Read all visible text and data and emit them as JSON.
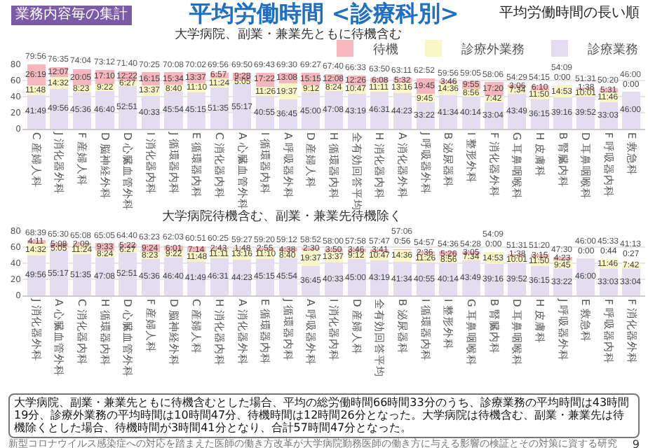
{
  "chart_data": [
    {
      "type": "bar",
      "title": "平均労働時間 <診療科別>",
      "subtitle": "大学病院、副業・兼業先ともに待機含む",
      "annotations": [
        "業務内容毎の集計",
        "平均労働時間の長い順"
      ],
      "categories": [
        "C 産婦人科",
        "J 消化器外科",
        "F 産婦人科",
        "D 脳神経外科",
        "D 心臓血管外科",
        "I 消化器内科",
        "J 循環器内科",
        "E 循環器内科",
        "C 消化器内科",
        "A 心臓血管外科",
        "I 循環器内科",
        "A 呼吸器外科",
        "D 産婦人科",
        "H 循環器内科",
        "全有効回答平均",
        "H 消化器内科",
        "A 消化器外科",
        "J 呼吸器外科",
        "B 泌尿器科",
        "I 整形外科",
        "F 消化器外科",
        "G 耳鼻咽喉科",
        "H 皮膚科",
        "B 腎臓内科",
        "D 耳鼻咽喉科",
        "F 呼吸器内科",
        "E 救急科"
      ],
      "series": [
        {
          "name": "診療業務",
          "color": "#e4ddef",
          "values": [
            41.82,
            49.93,
            45.6,
            46.67,
            52.85,
            40.55,
            45.9,
            45.25,
            51.58,
            55.28,
            40.92,
            36.75,
            45.0,
            47.13,
            43.32,
            46.52,
            44.38,
            33.37,
            41.57,
            40.23,
            33.07,
            43.82,
            36.25,
            39.27,
            39.87,
            33.05,
            46.0
          ],
          "value_labels": [
            "41:49",
            "49:56",
            "45:36",
            "46:40",
            "52:51",
            "40:33",
            "45:54",
            "45:15",
            "51:35",
            "55:17",
            "40:55",
            "36:45",
            "45:00",
            "47:08",
            "43:19",
            "46:31",
            "44:23",
            "33:22",
            "41:34",
            "40:14",
            "33:04",
            "43:49",
            "36:15",
            "39:16",
            "39:52",
            "33:03",
            "46:00"
          ]
        },
        {
          "name": "診療外業務",
          "color": "#fbf6c6",
          "values": [
            11.8,
            14.53,
            8.38,
            9.37,
            6.45,
            13.62,
            8.67,
            11.17,
            11.4,
            5.08,
            11.43,
            19.62,
            9.2,
            8.4,
            10.78,
            11.18,
            13.27,
            9.75,
            14.6,
            8.93,
            7.7,
            7.57,
            11.83,
            14.88,
            10.02,
            11.77,
            0
          ],
          "value_labels": [
            "11:48",
            "14:32",
            "8:23",
            "9:22",
            "6:27",
            "13:37",
            "8:40",
            "11:10",
            "11:24",
            "5:05",
            "11:26",
            "19:37",
            "9:12",
            "8:24",
            "10:47",
            "11:11",
            "13:16",
            "9:45",
            "14:36",
            "8:56",
            "7:42",
            "7:34",
            "11:50",
            "14:53",
            "10:01",
            "11:46",
            "0:00"
          ]
        },
        {
          "name": "待機",
          "color": "#f6b6bd",
          "values": [
            26.32,
            12.12,
            20.08,
            17.17,
            12.37,
            16.25,
            15.57,
            13.62,
            6.95,
            9.47,
            17.37,
            13.13,
            15.25,
            12.13,
            12.43,
            6.13,
            5.53,
            19.75,
            3.77,
            9.92,
            17.33,
            3.1,
            6.17,
            0,
            1.63,
            5.52,
            0
          ],
          "value_labels": [
            "26:19",
            "12:07",
            "20:05",
            "17:10",
            "12:22",
            "16:15",
            "15:34",
            "13:37",
            "6:57",
            "9:28",
            "17:22",
            "13:08",
            "15:15",
            "12:08",
            "12:26",
            "6:08",
            "5:32",
            "19:45",
            "3:46",
            "9:55",
            "17:20",
            "3:06",
            "6:10",
            "0:00",
            "1:38",
            "5:31",
            null
          ]
        }
      ],
      "totals": [
        "79:56",
        "76:35",
        "74:04",
        "73:12",
        "71:40",
        "70:25",
        "70:08",
        "70:02",
        "69:56",
        "69:50",
        "69:43",
        "69:30",
        "69:27",
        "67:40",
        "66:33",
        "63:50",
        "63:11",
        "62:52",
        "59:56",
        "59:05",
        "58:06",
        "54:29",
        "54:15",
        "54:09",
        "51:31",
        "50:20",
        "46:00"
      ],
      "stacked": true,
      "ylim": [
        0,
        80
      ],
      "yticks": [
        0,
        20,
        40,
        60,
        80
      ],
      "grid": "y",
      "legend": "top right"
    },
    {
      "type": "bar",
      "subtitle": "大学病院待機含む、副業・兼業先待機除く",
      "annotations": [
        "大学病院、副業・兼業先ともに待機含むとした場合、平均の総労働時間66時間33分のうち、診療業務の平均時間は43時間19分、診療外業務の平均時間は10時間47分、待機時間は12時間26分となった。大学病院は待機含む、副業・兼業先は待機除くとした場合、待機時間が3時間41分となり、合計57時間47分となった。",
        "新型コロナウイルス感染症への対応を踏まえた医師の働き方改革が大学病院勤務医師の働き方に与える影響の検証とその対策に資する研究",
        "9"
      ],
      "categories": [
        "J 消化器外科",
        "A 心臓血管外科",
        "C 消化器内科",
        "H 循環器内科",
        "D 心臓血管外科",
        "F 産婦人科",
        "D 脳神経外科",
        "C 産婦人科",
        "H 消化器内科",
        "A 消化器外科",
        "E 循環器内科",
        "J 循環器内科",
        "A 呼吸器外科",
        "I 消化器内科",
        "D 産婦人科",
        "全有効回答平均",
        "B 泌尿器科",
        "I 循環器内科",
        "I 整形外科",
        "G 耳鼻咽喉科",
        "B 腎臓内科",
        "D 耳鼻咽喉科",
        "H 皮膚科",
        "J 呼吸器外科",
        "E 救急科",
        "F 呼吸器内科",
        "F 消化器外科"
      ],
      "series": [
        {
          "color": "#e4ddef",
          "values": [
            49.93,
            55.28,
            51.58,
            47.13,
            52.85,
            45.6,
            46.67,
            41.82,
            46.52,
            44.38,
            45.25,
            45.9,
            36.75,
            40.55,
            45.0,
            43.32,
            41.57,
            40.92,
            40.23,
            43.82,
            39.27,
            39.87,
            36.25,
            33.37,
            46.0,
            33.05,
            33.07
          ],
          "value_labels": [
            "49:56",
            "55:17",
            "51:35",
            "47:08",
            "52:51",
            "45:36",
            "46:40",
            "41:49",
            "46:31",
            "44:23",
            "45:15",
            "45:54",
            "36:45",
            "40:33",
            "45:00",
            "43:19",
            "41:34",
            "40:55",
            "40:14",
            "43:49",
            "39:16",
            "39:52",
            "36:15",
            "33:22",
            "46:00",
            "33:03",
            "33:04"
          ]
        },
        {
          "color": "#fbf6c6",
          "values": [
            14.53,
            5.08,
            11.4,
            8.4,
            6.45,
            8.38,
            9.37,
            11.8,
            11.18,
            13.27,
            11.17,
            8.67,
            19.62,
            13.62,
            9.2,
            10.78,
            14.6,
            11.43,
            8.93,
            7.57,
            14.88,
            10.02,
            11.83,
            9.75,
            0,
            11.77,
            7.7
          ],
          "value_labels": [
            "14:32",
            "5:05",
            "11:24",
            "8:24",
            "6:27",
            "8:23",
            "9:22",
            "11:48",
            "11:11",
            "13:16",
            "11:10",
            "8:40",
            "19:37",
            "13:37",
            "9:12",
            "10:47",
            "14:36",
            "11:26",
            "8:56",
            "7:34",
            "14:53",
            "10:01",
            "11:50",
            "9:45",
            "0:00",
            "11:46",
            "7:42"
          ]
        },
        {
          "color": "#f6b6bd",
          "values": [
            4.18,
            5.13,
            2.15,
            9.55,
            5.37,
            9.4,
            6.02,
            7.23,
            2.72,
            1.8,
            2.92,
            4.63,
            2.5,
            3.83,
            3.77,
            3.68,
            0.93,
            2.6,
            5.43,
            3.08,
            0,
            1.63,
            3.25,
            4.38,
            0,
            0.73,
            0.45
          ],
          "value_labels": [
            "4:11",
            "5:08",
            "2:09",
            "9:33",
            "5:22",
            "9:24",
            "6:01",
            "7:14",
            "2:43",
            "1:48",
            "2:55",
            "4:38",
            "2:30",
            "3:50",
            "3:46",
            "3:41",
            "0:56",
            "2:36",
            "5:26",
            "3:05",
            "0:00",
            "1:38",
            "3:15",
            "4:23",
            null,
            "0:44",
            "0:27"
          ]
        }
      ],
      "totals": [
        "68:39",
        "65:30",
        "65:08",
        "65:05",
        "64:40",
        "63:23",
        "62:03",
        "60:51",
        "60:25",
        "59:27",
        "59:20",
        "59:12",
        "58:52",
        "58:00",
        "57:58",
        "57:47",
        "57:06",
        "54:57",
        "54:36",
        "54:28",
        "54:09",
        "51:31",
        "51:20",
        "47:30",
        "46:00",
        "45:33",
        "41:13"
      ],
      "stacked": true,
      "ylim": [
        0,
        80
      ],
      "yticks": [
        0,
        20,
        40,
        60,
        80
      ],
      "grid": "y"
    }
  ]
}
